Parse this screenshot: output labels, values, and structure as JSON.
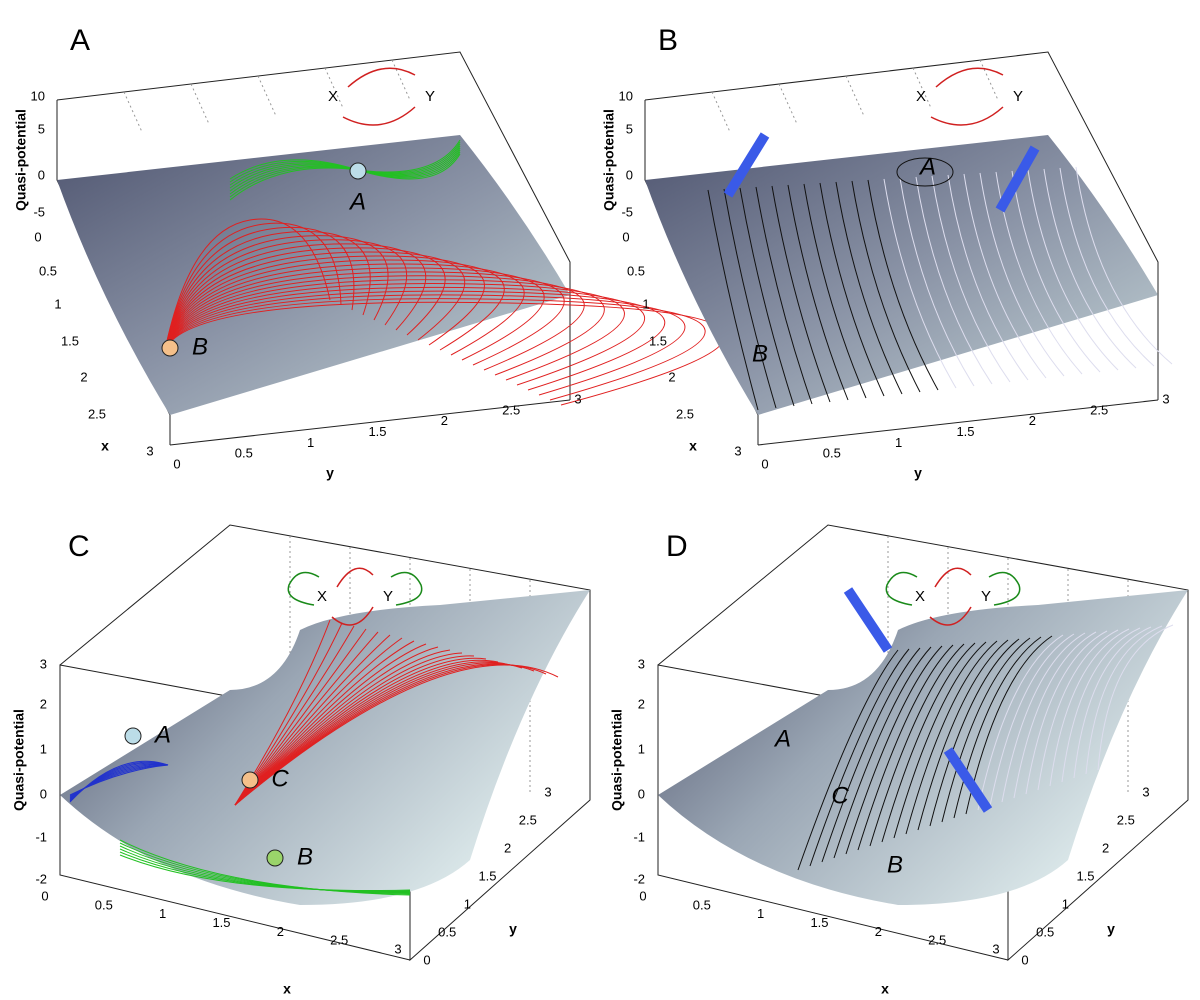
{
  "panels": [
    {
      "letter": "A",
      "z_label": "Quasi-potential",
      "x_label": "x",
      "y_label": "y",
      "z_ticks": [
        "10",
        "5",
        "0",
        "-5"
      ],
      "x_ticks": [
        "0",
        "0.5",
        "1",
        "1.5",
        "2",
        "2.5",
        "3"
      ],
      "y_ticks": [
        "0",
        "0.5",
        "1",
        "1.5",
        "2",
        "2.5",
        "3"
      ],
      "states": [
        "A",
        "B"
      ],
      "network": [
        "X",
        "Y"
      ]
    },
    {
      "letter": "B",
      "z_label": "Quasi-potential",
      "x_label": "x",
      "y_label": "y",
      "z_ticks": [
        "10",
        "5",
        "0",
        "-5"
      ],
      "x_ticks": [
        "0",
        "0.5",
        "1",
        "1.5",
        "2",
        "2.5",
        "3"
      ],
      "y_ticks": [
        "0",
        "0.5",
        "1",
        "1.5",
        "2",
        "2.5",
        "3"
      ],
      "states": [
        "A",
        "B"
      ],
      "network": [
        "X",
        "Y"
      ]
    },
    {
      "letter": "C",
      "z_label": "Quasi-potential",
      "x_label": "x",
      "y_label": "y",
      "z_ticks": [
        "3",
        "2",
        "1",
        "0",
        "-1",
        "-2"
      ],
      "x_ticks": [
        "0",
        "0.5",
        "1",
        "1.5",
        "2",
        "2.5",
        "3"
      ],
      "y_ticks": [
        "0",
        "0.5",
        "1",
        "1.5",
        "2",
        "2.5",
        "3"
      ],
      "states": [
        "A",
        "C",
        "B"
      ],
      "network": [
        "X",
        "Y"
      ]
    },
    {
      "letter": "D",
      "z_label": "Quasi-potential",
      "x_label": "x",
      "y_label": "y",
      "z_ticks": [
        "3",
        "2",
        "1",
        "0",
        "-1",
        "-2"
      ],
      "x_ticks": [
        "0",
        "0.5",
        "1",
        "1.5",
        "2",
        "2.5",
        "3"
      ],
      "y_ticks": [
        "0",
        "0.5",
        "1",
        "1.5",
        "2",
        "2.5",
        "3"
      ],
      "states": [
        "A",
        "C",
        "B"
      ],
      "network": [
        "X",
        "Y"
      ]
    }
  ]
}
